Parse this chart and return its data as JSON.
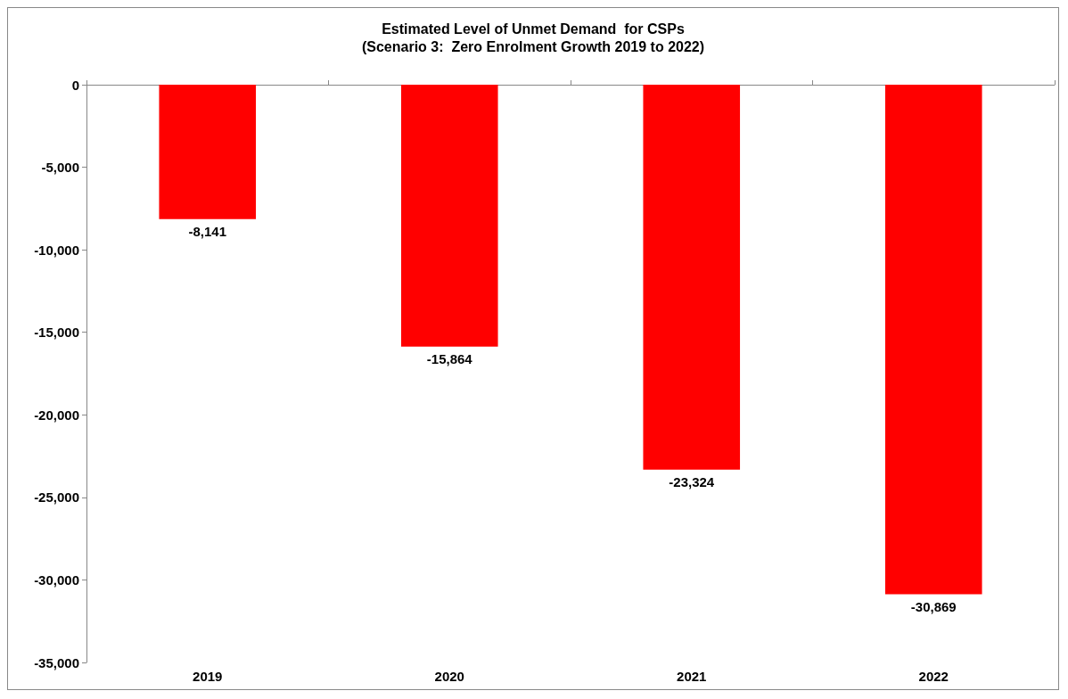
{
  "chart_data": {
    "type": "bar",
    "title": "Estimated Level of Unmet Demand  for CSPs",
    "subtitle": "(Scenario 3:  Zero Enrolment Growth 2019 to 2022)",
    "categories": [
      "2019",
      "2020",
      "2021",
      "2022"
    ],
    "values": [
      -8141,
      -15864,
      -23324,
      -30869
    ],
    "value_labels": [
      "-8,141",
      "-15,864",
      "-23,324",
      "-30,869"
    ],
    "color": "#ff0000",
    "ylim": [
      -35000,
      0
    ],
    "yticks": [
      {
        "value": -35000,
        "label": "-35,000"
      },
      {
        "value": -30000,
        "label": "-30,000"
      },
      {
        "value": -25000,
        "label": "-25,000"
      },
      {
        "value": -20000,
        "label": "-20,000"
      },
      {
        "value": -15000,
        "label": "-15,000"
      },
      {
        "value": -10000,
        "label": "-10,000"
      },
      {
        "value": -5000,
        "label": "-5,000"
      },
      0
    ],
    "grid": false
  }
}
